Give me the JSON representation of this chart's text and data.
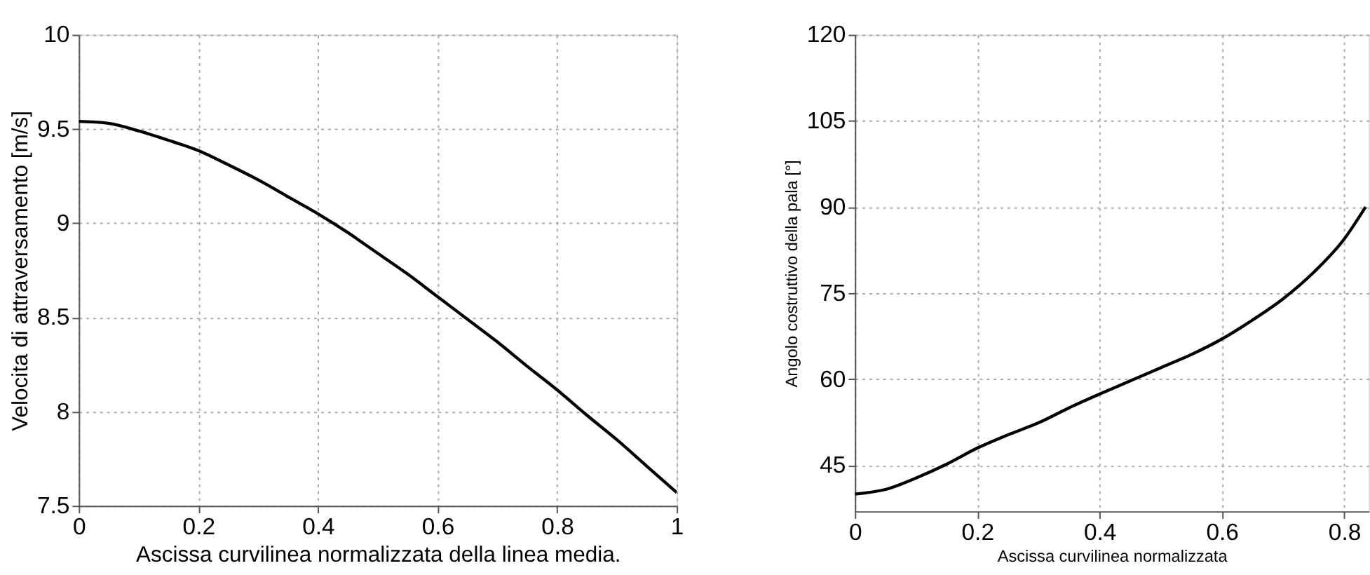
{
  "chart_data": [
    {
      "type": "line",
      "xlabel": "Ascissa curvilinea normalizzata della linea media.",
      "ylabel": "Velocita di attraversamento [m/s]",
      "x": [
        0,
        0.05,
        0.1,
        0.15,
        0.2,
        0.25,
        0.3,
        0.35,
        0.4,
        0.45,
        0.5,
        0.55,
        0.6,
        0.65,
        0.7,
        0.75,
        0.8,
        0.85,
        0.9,
        0.95,
        1
      ],
      "series": [
        {
          "color": "#000000",
          "values": [
            9.54,
            9.53,
            9.49,
            9.44,
            9.385,
            9.31,
            9.23,
            9.14,
            9.05,
            8.95,
            8.84,
            8.73,
            8.61,
            8.49,
            8.37,
            8.24,
            8.115,
            7.98,
            7.85,
            7.71,
            7.57
          ]
        }
      ],
      "xlim": [
        0,
        1
      ],
      "xticks": [
        0,
        0.2,
        0.4,
        0.6,
        0.8,
        1
      ],
      "ylim": [
        7.5,
        10
      ],
      "yticks": [
        7.5,
        8,
        8.5,
        9,
        9.5,
        10
      ],
      "grid": true,
      "marker": "none",
      "line_style": "solid"
    },
    {
      "type": "line",
      "xlabel": "Ascissa curvilinea normalizzata",
      "ylabel": "Angolo costruttivo della pala [°]",
      "x": [
        0,
        0.05,
        0.1,
        0.15,
        0.2,
        0.25,
        0.3,
        0.35,
        0.4,
        0.45,
        0.5,
        0.55,
        0.6,
        0.65,
        0.7,
        0.75,
        0.8,
        0.835
      ],
      "series": [
        {
          "color": "#000000",
          "values": [
            40,
            40.8,
            42.8,
            45.2,
            48,
            50.3,
            52.4,
            55,
            57.4,
            59.7,
            62,
            64.3,
            67,
            70.3,
            74,
            78.6,
            84.4,
            90
          ]
        }
      ],
      "xlim": [
        0,
        0.84
      ],
      "xticks": [
        0,
        0.2,
        0.4,
        0.6,
        0.8
      ],
      "ylim": [
        37,
        120
      ],
      "yticks": [
        45,
        60,
        75,
        90,
        105,
        120
      ],
      "grid": true,
      "marker": "none",
      "line_style": "solid"
    }
  ]
}
